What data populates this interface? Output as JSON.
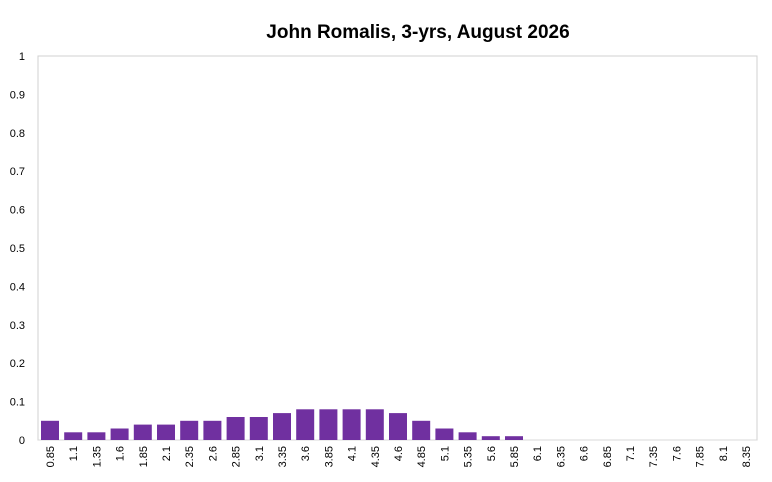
{
  "chart_data": {
    "type": "bar",
    "title": "John Romalis, 3-yrs, August 2026",
    "xlabel": "",
    "ylabel": "",
    "ylim": [
      0,
      1
    ],
    "yticks": [
      "0",
      "0.1",
      "0.2",
      "0.3",
      "0.4",
      "0.5",
      "0.6",
      "0.7",
      "0.8",
      "0.9",
      "1"
    ],
    "grid": false,
    "legend": "none",
    "bar_color": "#7030a0",
    "categories": [
      "0.85",
      "1.1",
      "1.35",
      "1.6",
      "1.85",
      "2.1",
      "2.35",
      "2.6",
      "2.85",
      "3.1",
      "3.35",
      "3.6",
      "3.85",
      "4.1",
      "4.35",
      "4.6",
      "4.85",
      "5.1",
      "5.35",
      "5.6",
      "5.85",
      "6.1",
      "6.35",
      "6.6",
      "6.85",
      "7.1",
      "7.35",
      "7.6",
      "7.85",
      "8.1",
      "8.35"
    ],
    "values": [
      0.05,
      0.02,
      0.02,
      0.03,
      0.04,
      0.04,
      0.05,
      0.05,
      0.06,
      0.06,
      0.07,
      0.08,
      0.08,
      0.08,
      0.08,
      0.07,
      0.05,
      0.03,
      0.02,
      0.01,
      0.01,
      0,
      0,
      0,
      0,
      0,
      0,
      0,
      0,
      0,
      0
    ]
  }
}
